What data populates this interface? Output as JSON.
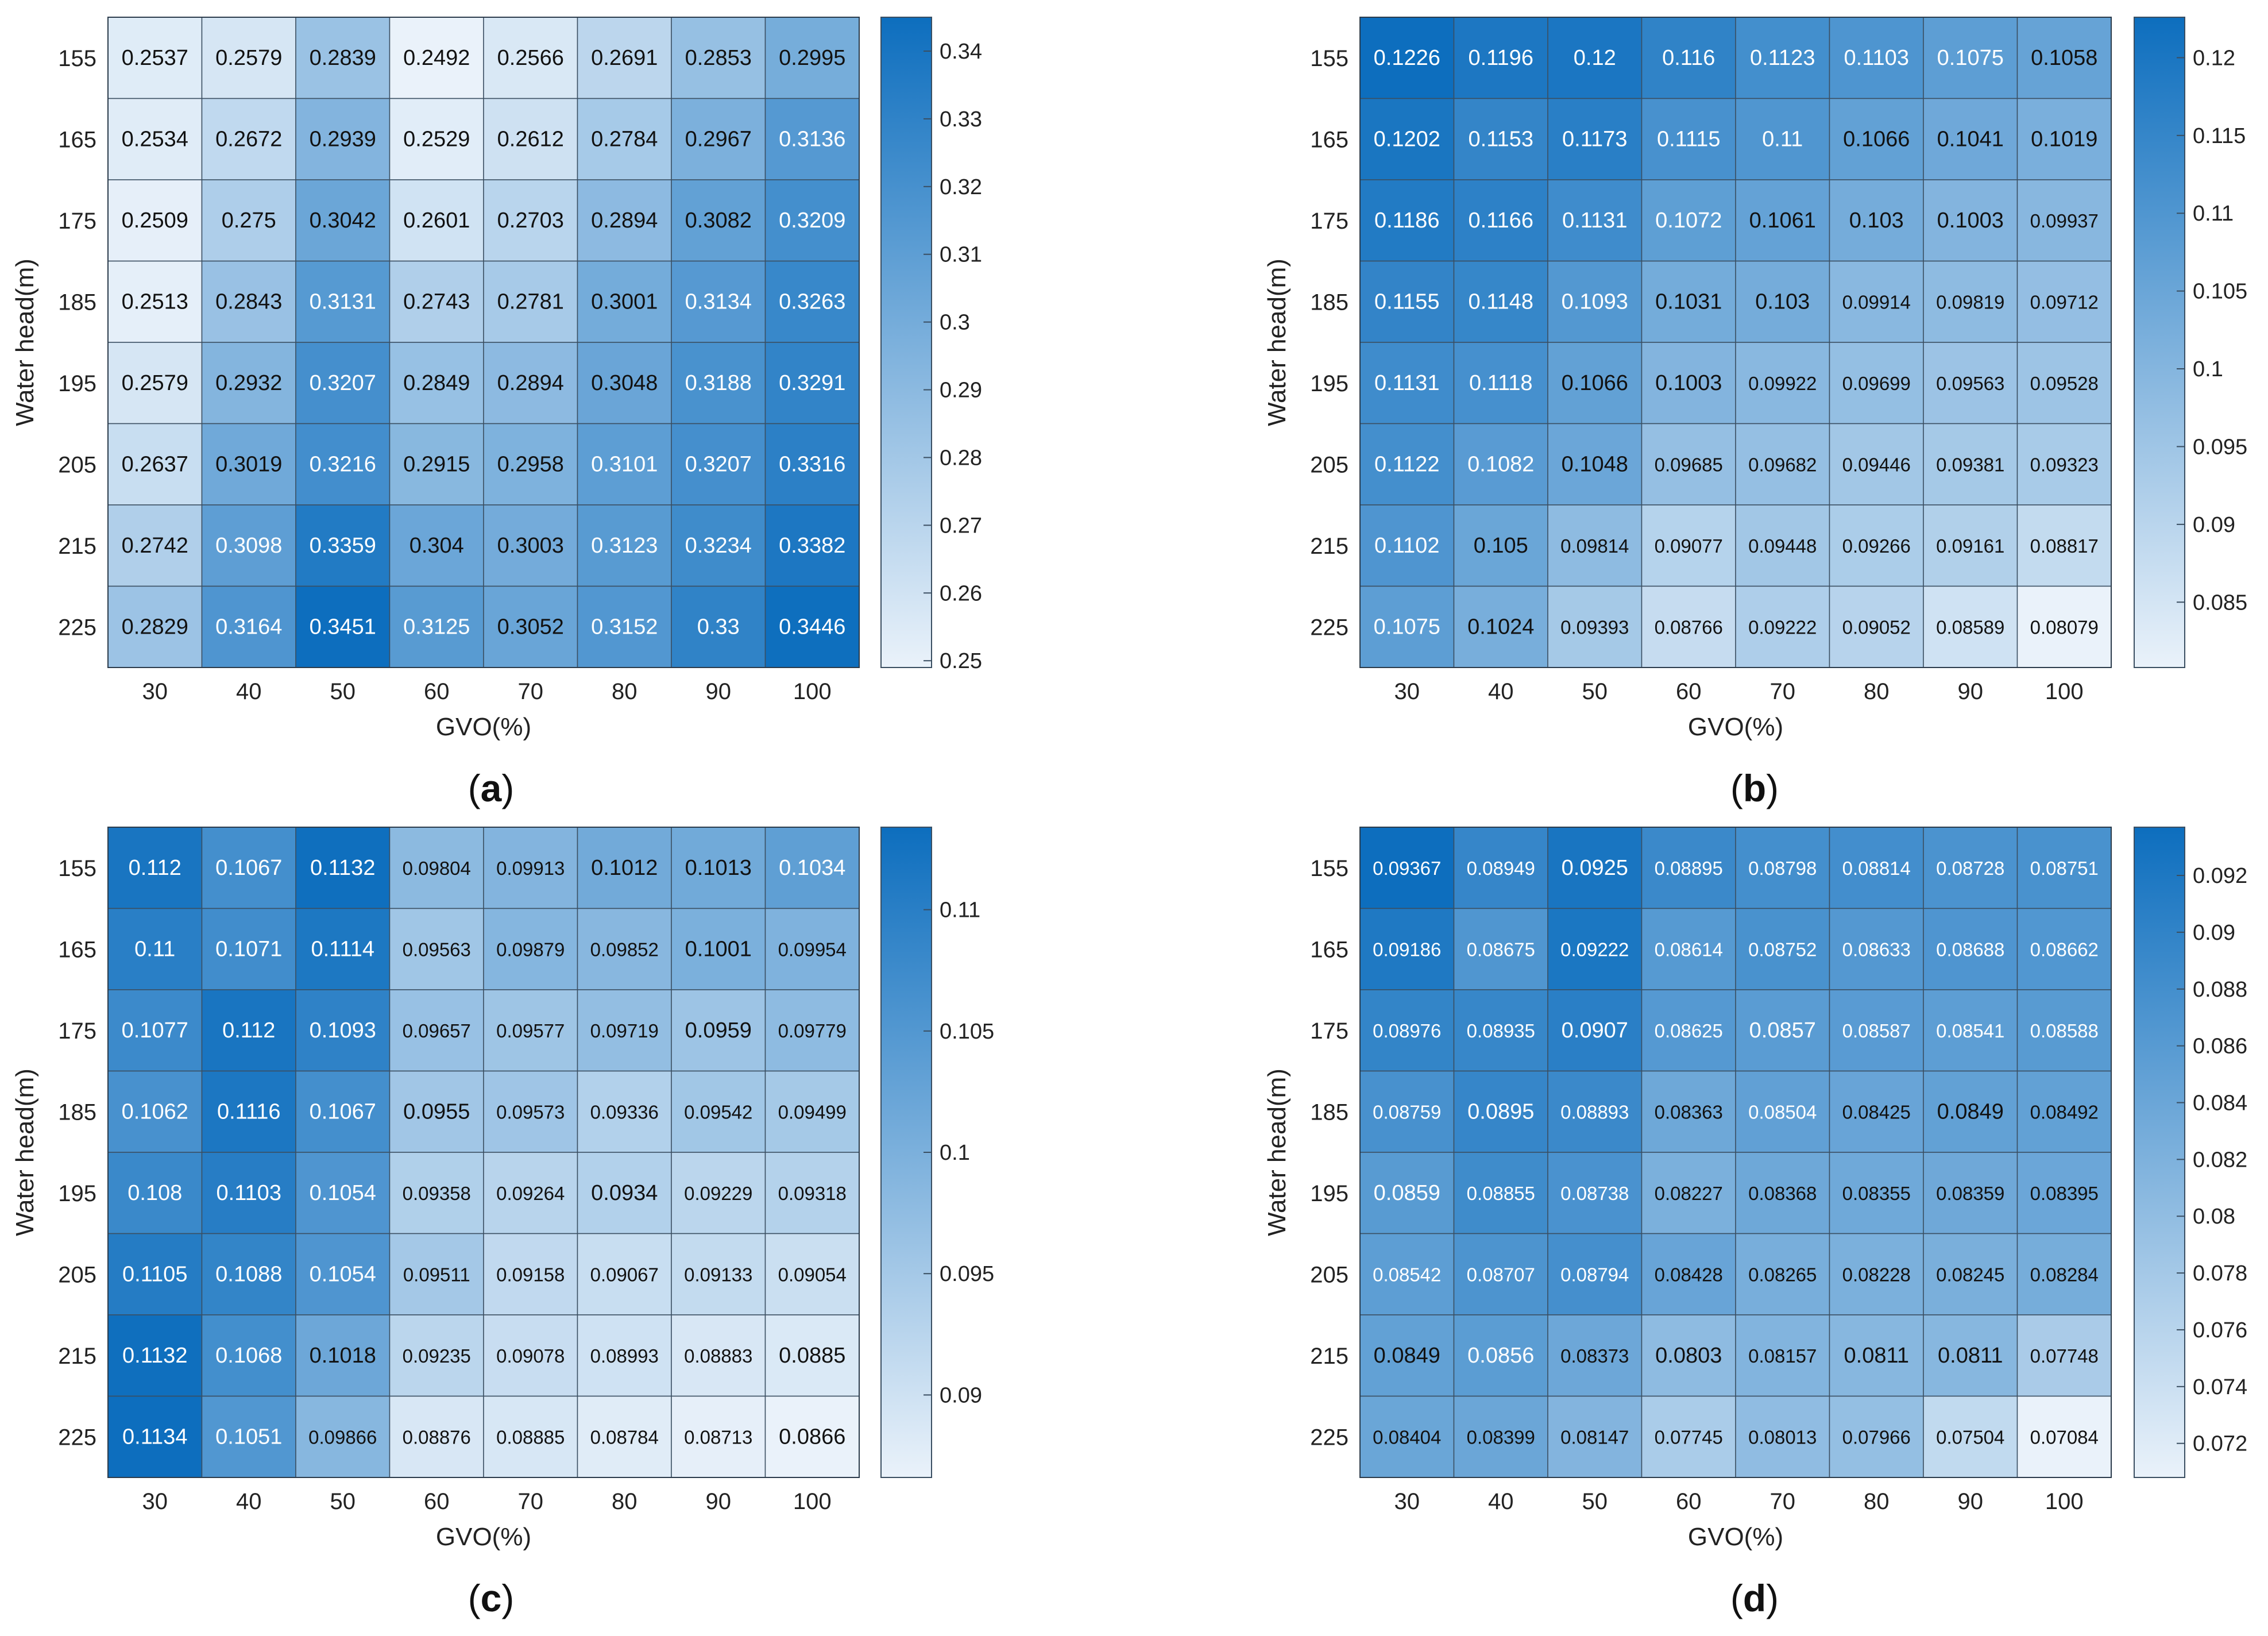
{
  "chart_data": [
    {
      "type": "heatmap",
      "panel_label": "a",
      "xlabel": "GVO(%)",
      "ylabel": "Water head(m)",
      "x": [
        "30",
        "40",
        "50",
        "60",
        "70",
        "80",
        "90",
        "100"
      ],
      "y": [
        "155",
        "165",
        "175",
        "185",
        "195",
        "205",
        "215",
        "225"
      ],
      "values": [
        [
          "0.2537",
          "0.2579",
          "0.2839",
          "0.2492",
          "0.2566",
          "0.2691",
          "0.2853",
          "0.2995"
        ],
        [
          "0.2534",
          "0.2672",
          "0.2939",
          "0.2529",
          "0.2612",
          "0.2784",
          "0.2967",
          "0.3136"
        ],
        [
          "0.2509",
          "0.275",
          "0.3042",
          "0.2601",
          "0.2703",
          "0.2894",
          "0.3082",
          "0.3209"
        ],
        [
          "0.2513",
          "0.2843",
          "0.3131",
          "0.2743",
          "0.2781",
          "0.3001",
          "0.3134",
          "0.3263"
        ],
        [
          "0.2579",
          "0.2932",
          "0.3207",
          "0.2849",
          "0.2894",
          "0.3048",
          "0.3188",
          "0.3291"
        ],
        [
          "0.2637",
          "0.3019",
          "0.3216",
          "0.2915",
          "0.2958",
          "0.3101",
          "0.3207",
          "0.3316"
        ],
        [
          "0.2742",
          "0.3098",
          "0.3359",
          "0.304",
          "0.3003",
          "0.3123",
          "0.3234",
          "0.3382"
        ],
        [
          "0.2829",
          "0.3164",
          "0.3451",
          "0.3125",
          "0.3052",
          "0.3152",
          "0.33",
          "0.3446"
        ]
      ],
      "colorbar": {
        "range": [
          0.249,
          0.345
        ],
        "ticks": [
          "0.25",
          "0.26",
          "0.27",
          "0.28",
          "0.29",
          "0.3",
          "0.31",
          "0.32",
          "0.33",
          "0.34"
        ]
      },
      "colors": {
        "low": "#eaf2fa",
        "high": "#0d6ebe"
      }
    },
    {
      "type": "heatmap",
      "panel_label": "b",
      "xlabel": "GVO(%)",
      "ylabel": "Water head(m)",
      "x": [
        "30",
        "40",
        "50",
        "60",
        "70",
        "80",
        "90",
        "100"
      ],
      "y": [
        "155",
        "165",
        "175",
        "185",
        "195",
        "205",
        "215",
        "225"
      ],
      "values": [
        [
          "0.1226",
          "0.1196",
          "0.12",
          "0.116",
          "0.1123",
          "0.1103",
          "0.1075",
          "0.1058"
        ],
        [
          "0.1202",
          "0.1153",
          "0.1173",
          "0.1115",
          "0.11",
          "0.1066",
          "0.1041",
          "0.1019"
        ],
        [
          "0.1186",
          "0.1166",
          "0.1131",
          "0.1072",
          "0.1061",
          "0.103",
          "0.1003",
          "0.09937"
        ],
        [
          "0.1155",
          "0.1148",
          "0.1093",
          "0.1031",
          "0.103",
          "0.09914",
          "0.09819",
          "0.09712"
        ],
        [
          "0.1131",
          "0.1118",
          "0.1066",
          "0.1003",
          "0.09922",
          "0.09699",
          "0.09563",
          "0.09528"
        ],
        [
          "0.1122",
          "0.1082",
          "0.1048",
          "0.09685",
          "0.09682",
          "0.09446",
          "0.09381",
          "0.09323"
        ],
        [
          "0.1102",
          "0.105",
          "0.09814",
          "0.09077",
          "0.09448",
          "0.09266",
          "0.09161",
          "0.08817"
        ],
        [
          "0.1075",
          "0.1024",
          "0.09393",
          "0.08766",
          "0.09222",
          "0.09052",
          "0.08589",
          "0.08079"
        ]
      ],
      "colorbar": {
        "range": [
          0.0808,
          0.1226
        ],
        "ticks": [
          "0.085",
          "0.09",
          "0.095",
          "0.1",
          "0.105",
          "0.11",
          "0.115",
          "0.12"
        ]
      },
      "colors": {
        "low": "#eaf2fa",
        "high": "#0d6ebe"
      }
    },
    {
      "type": "heatmap",
      "panel_label": "c",
      "xlabel": "GVO(%)",
      "ylabel": "Water head(m)",
      "x": [
        "30",
        "40",
        "50",
        "60",
        "70",
        "80",
        "90",
        "100"
      ],
      "y": [
        "155",
        "165",
        "175",
        "185",
        "195",
        "205",
        "215",
        "225"
      ],
      "values": [
        [
          "0.112",
          "0.1067",
          "0.1132",
          "0.09804",
          "0.09913",
          "0.1012",
          "0.1013",
          "0.1034"
        ],
        [
          "0.11",
          "0.1071",
          "0.1114",
          "0.09563",
          "0.09879",
          "0.09852",
          "0.1001",
          "0.09954"
        ],
        [
          "0.1077",
          "0.112",
          "0.1093",
          "0.09657",
          "0.09577",
          "0.09719",
          "0.0959",
          "0.09779"
        ],
        [
          "0.1062",
          "0.1116",
          "0.1067",
          "0.0955",
          "0.09573",
          "0.09336",
          "0.09542",
          "0.09499"
        ],
        [
          "0.108",
          "0.1103",
          "0.1054",
          "0.09358",
          "0.09264",
          "0.0934",
          "0.09229",
          "0.09318"
        ],
        [
          "0.1105",
          "0.1088",
          "0.1054",
          "0.09511",
          "0.09158",
          "0.09067",
          "0.09133",
          "0.09054"
        ],
        [
          "0.1132",
          "0.1068",
          "0.1018",
          "0.09235",
          "0.09078",
          "0.08993",
          "0.08883",
          "0.0885"
        ],
        [
          "0.1134",
          "0.1051",
          "0.09866",
          "0.08876",
          "0.08885",
          "0.08784",
          "0.08713",
          "0.0866"
        ]
      ],
      "colorbar": {
        "range": [
          0.0866,
          0.1134
        ],
        "ticks": [
          "0.09",
          "0.095",
          "0.1",
          "0.105",
          "0.11"
        ]
      },
      "colors": {
        "low": "#eaf2fa",
        "high": "#0d6ebe"
      }
    },
    {
      "type": "heatmap",
      "panel_label": "d",
      "xlabel": "GVO(%)",
      "ylabel": "Water head(m)",
      "x": [
        "30",
        "40",
        "50",
        "60",
        "70",
        "80",
        "90",
        "100"
      ],
      "y": [
        "155",
        "165",
        "175",
        "185",
        "195",
        "205",
        "215",
        "225"
      ],
      "values": [
        [
          "0.09367",
          "0.08949",
          "0.0925",
          "0.08895",
          "0.08798",
          "0.08814",
          "0.08728",
          "0.08751"
        ],
        [
          "0.09186",
          "0.08675",
          "0.09222",
          "0.08614",
          "0.08752",
          "0.08633",
          "0.08688",
          "0.08662"
        ],
        [
          "0.08976",
          "0.08935",
          "0.0907",
          "0.08625",
          "0.0857",
          "0.08587",
          "0.08541",
          "0.08588"
        ],
        [
          "0.08759",
          "0.0895",
          "0.08893",
          "0.08363",
          "0.08504",
          "0.08425",
          "0.0849",
          "0.08492"
        ],
        [
          "0.0859",
          "0.08855",
          "0.08738",
          "0.08227",
          "0.08368",
          "0.08355",
          "0.08359",
          "0.08395"
        ],
        [
          "0.08542",
          "0.08707",
          "0.08794",
          "0.08428",
          "0.08265",
          "0.08228",
          "0.08245",
          "0.08284"
        ],
        [
          "0.0849",
          "0.0856",
          "0.08373",
          "0.0803",
          "0.08157",
          "0.0811",
          "0.0811",
          "0.07748"
        ],
        [
          "0.08404",
          "0.08399",
          "0.08147",
          "0.07745",
          "0.08013",
          "0.07966",
          "0.07504",
          "0.07084"
        ]
      ],
      "colorbar": {
        "range": [
          0.0708,
          0.0937
        ],
        "ticks": [
          "0.072",
          "0.074",
          "0.076",
          "0.078",
          "0.08",
          "0.082",
          "0.084",
          "0.086",
          "0.088",
          "0.09",
          "0.092"
        ]
      },
      "colors": {
        "low": "#eaf2fa",
        "high": "#0d6ebe"
      }
    }
  ]
}
